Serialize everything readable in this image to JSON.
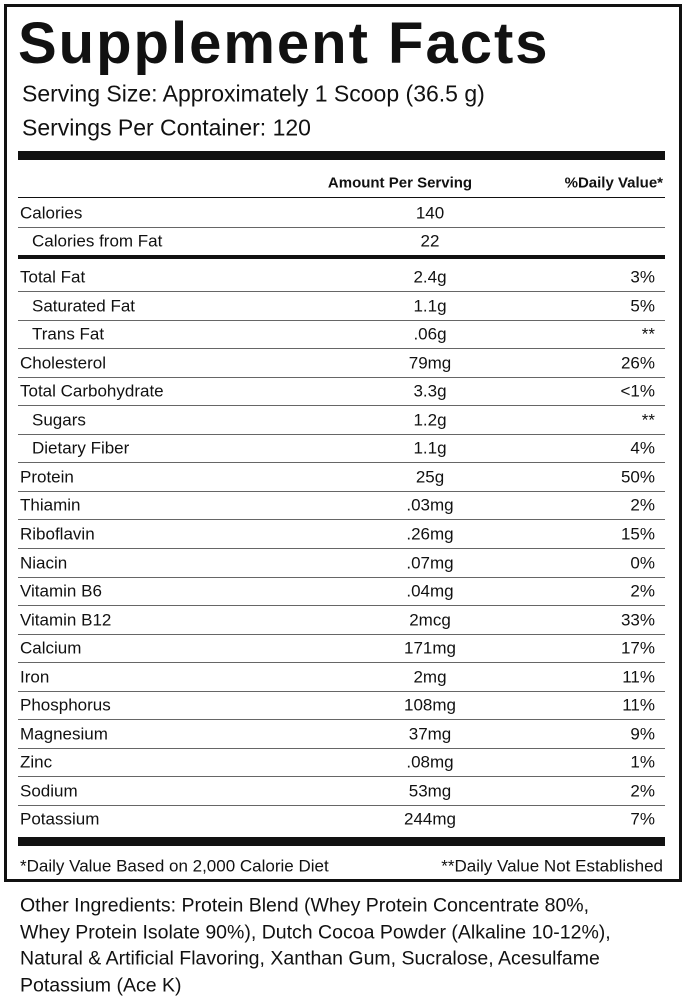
{
  "title": "Supplement Facts",
  "serving_size": "Serving Size: Approximately 1 Scoop (36.5 g)",
  "servings_per_container": "Servings Per Container: 120",
  "header": {
    "amount": "Amount Per Serving",
    "daily_value": "%Daily Value*"
  },
  "calorie_rows": [
    {
      "name": "Calories",
      "amount": "140"
    },
    {
      "name": "Calories from Fat",
      "amount": "22",
      "sub": true
    }
  ],
  "nutrient_rows": [
    {
      "name": "Total Fat",
      "amount": "2.4g",
      "daily_value": "3%"
    },
    {
      "name": "Saturated Fat",
      "amount": "1.1g",
      "daily_value": "5%",
      "sub": true
    },
    {
      "name": "Trans Fat",
      "amount": ".06g",
      "daily_value": "**",
      "sub": true
    },
    {
      "name": "Cholesterol",
      "amount": "79mg",
      "daily_value": "26%"
    },
    {
      "name": "Total Carbohydrate",
      "amount": "3.3g",
      "daily_value": "<1%"
    },
    {
      "name": "Sugars",
      "amount": "1.2g",
      "daily_value": "**",
      "sub": true
    },
    {
      "name": "Dietary Fiber",
      "amount": "1.1g",
      "daily_value": "4%",
      "sub": true
    },
    {
      "name": "Protein",
      "amount": "25g",
      "daily_value": "50%"
    },
    {
      "name": "Thiamin",
      "amount": ".03mg",
      "daily_value": "2%"
    },
    {
      "name": "Riboflavin",
      "amount": ".26mg",
      "daily_value": "15%"
    },
    {
      "name": "Niacin",
      "amount": ".07mg",
      "daily_value": "0%"
    },
    {
      "name": "Vitamin B6",
      "amount": ".04mg",
      "daily_value": "2%"
    },
    {
      "name": "Vitamin B12",
      "amount": "2mcg",
      "daily_value": "33%"
    },
    {
      "name": "Calcium",
      "amount": "171mg",
      "daily_value": "17%"
    },
    {
      "name": "Iron",
      "amount": "2mg",
      "daily_value": "11%"
    },
    {
      "name": "Phosphorus",
      "amount": "108mg",
      "daily_value": "11%"
    },
    {
      "name": "Magnesium",
      "amount": "37mg",
      "daily_value": "9%"
    },
    {
      "name": "Zinc",
      "amount": ".08mg",
      "daily_value": "1%"
    },
    {
      "name": "Sodium",
      "amount": "53mg",
      "daily_value": "2%"
    },
    {
      "name": "Potassium",
      "amount": "244mg",
      "daily_value": "7%"
    }
  ],
  "footnotes": [
    "*Daily Value Based on 2,000 Calorie Diet",
    "**Daily Value Not Established"
  ],
  "other_ingredients": [
    "Other Ingredients: Protein Blend (Whey Protein Concentrate 80%,",
    "Whey Protein Isolate 90%), Dutch Cocoa Powder (Alkaline 10-12%),",
    "Natural & Artificial Flavoring, Xanthan Gum, Sucralose, Acesulfame",
    "Potassium (Ace K)"
  ]
}
